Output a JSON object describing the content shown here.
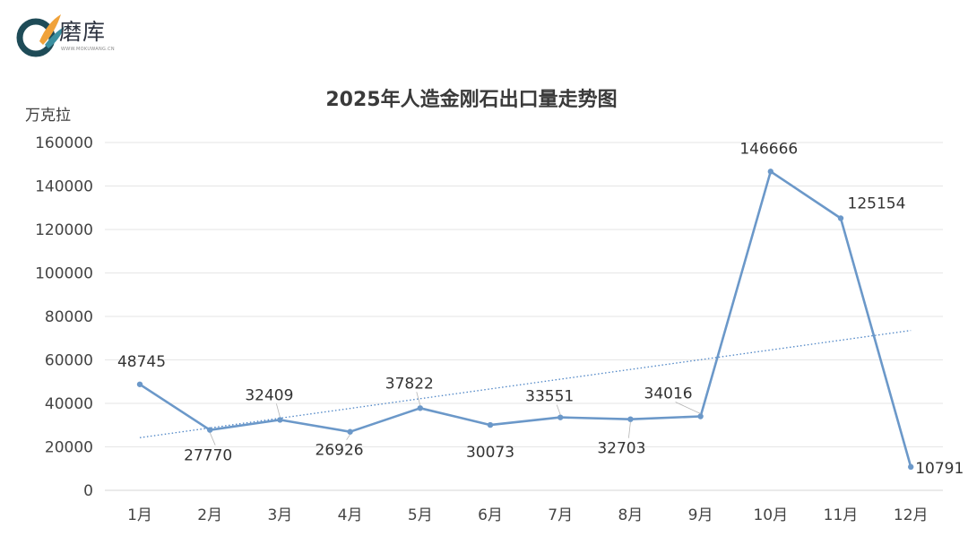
{
  "brand": {
    "name": "磨库",
    "url": "WWW.MOKUWANG.CN",
    "colors": {
      "dark": "#1e4b57",
      "orange": "#f0a23a",
      "teal": "#3a8fa0"
    }
  },
  "chart_data": {
    "type": "line",
    "title": "2025年人造金刚石出口量走势图",
    "ylabel": "万克拉",
    "xlabel": "",
    "categories": [
      "1月",
      "2月",
      "3月",
      "4月",
      "5月",
      "6月",
      "7月",
      "8月",
      "9月",
      "10月",
      "11月",
      "12月"
    ],
    "series": [
      {
        "values": [
          48745,
          27770,
          32409,
          26926,
          37822,
          30073,
          33551,
          32703,
          34016,
          146666,
          125154,
          10791
        ],
        "color": "#6b98c9"
      }
    ],
    "trendline": {
      "type": "linear",
      "style": "dotted",
      "color": "#4f86c6"
    },
    "yticks": [
      "0",
      "20000",
      "40000",
      "60000",
      "80000",
      "100000",
      "120000",
      "140000",
      "160000"
    ],
    "ylim": [
      0,
      160000
    ],
    "grid": true,
    "legend": "none",
    "data_labels": [
      "48745",
      "27770",
      "32409",
      "26926",
      "37822",
      "30073",
      "33551",
      "32703",
      "34016",
      "146666",
      "125154",
      "10791"
    ]
  }
}
